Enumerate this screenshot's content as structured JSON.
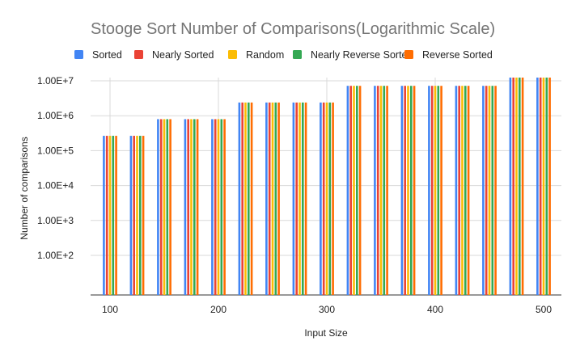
{
  "chart_data": {
    "type": "bar",
    "title": "Stooge Sort Number of Comparisons(Logarithmic Scale)",
    "xlabel": "Input Size",
    "ylabel": "Number of comparisons",
    "y_scale": "log",
    "ylim": [
      13,
      20000000
    ],
    "grid": true,
    "legend_position": "top",
    "x": [
      100,
      125,
      150,
      175,
      200,
      225,
      250,
      275,
      300,
      325,
      350,
      375,
      400,
      425,
      450,
      475,
      500
    ],
    "x_ticks": [
      {
        "value": 100,
        "label": "100"
      },
      {
        "value": 200,
        "label": "200"
      },
      {
        "value": 300,
        "label": "300"
      },
      {
        "value": 400,
        "label": "400"
      },
      {
        "value": 500,
        "label": "500"
      }
    ],
    "y_ticks": [
      {
        "value": 100,
        "label": "1.00E+2"
      },
      {
        "value": 1000,
        "label": "1.00E+3"
      },
      {
        "value": 10000,
        "label": "1.00E+4"
      },
      {
        "value": 100000,
        "label": "1.00E+5"
      },
      {
        "value": 1000000,
        "label": "1.00E+6"
      },
      {
        "value": 10000000,
        "label": "1.00E+7"
      }
    ],
    "series": [
      {
        "name": "Sorted",
        "color": "#4285F4",
        "values": [
          265720,
          265720,
          797161,
          797161,
          797161,
          2391484,
          2391484,
          2391484,
          2391484,
          7174453,
          7174453,
          7174453,
          7174453,
          7174453,
          7174453,
          21523360,
          21523360
        ]
      },
      {
        "name": "Nearly Sorted",
        "color": "#EA4335",
        "values": [
          265720,
          265720,
          797161,
          797161,
          797161,
          2391484,
          2391484,
          2391484,
          2391484,
          7174453,
          7174453,
          7174453,
          7174453,
          7174453,
          7174453,
          21523360,
          21523360
        ]
      },
      {
        "name": "Random",
        "color": "#FBBC04",
        "values": [
          265720,
          265720,
          797161,
          797161,
          797161,
          2391484,
          2391484,
          2391484,
          2391484,
          7174453,
          7174453,
          7174453,
          7174453,
          7174453,
          7174453,
          21523360,
          21523360
        ]
      },
      {
        "name": "Nearly Reverse Sorted",
        "color": "#34A853",
        "values": [
          265720,
          265720,
          797161,
          797161,
          797161,
          2391484,
          2391484,
          2391484,
          2391484,
          7174453,
          7174453,
          7174453,
          7174453,
          7174453,
          7174453,
          21523360,
          21523360
        ]
      },
      {
        "name": "Reverse Sorted",
        "color": "#FF6D01",
        "values": [
          265720,
          265720,
          797161,
          797161,
          797161,
          2391484,
          2391484,
          2391484,
          2391484,
          7174453,
          7174453,
          7174453,
          7174453,
          7174453,
          7174453,
          21523360,
          21523360
        ]
      }
    ]
  }
}
